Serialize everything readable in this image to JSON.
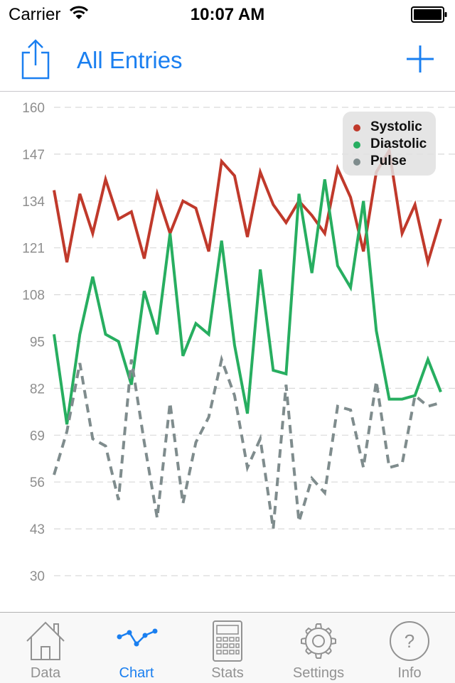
{
  "status_bar": {
    "carrier": "Carrier",
    "time": "10:07 AM"
  },
  "nav": {
    "title": "All Entries"
  },
  "colors": {
    "accent": "#1a7ff0",
    "systolic": "#c0392b",
    "diastolic": "#27ae60",
    "pulse": "#7f8c8d",
    "tab_inactive": "#929292"
  },
  "chart_data": {
    "type": "line",
    "ylim": [
      30,
      160
    ],
    "yticks": [
      "160",
      "147",
      "134",
      "121",
      "108",
      "95",
      "82",
      "69",
      "56",
      "43",
      "30"
    ],
    "grid": true,
    "legend_position": "top-right",
    "series": [
      {
        "name": "Systolic",
        "color": "#c0392b",
        "style": "solid",
        "values": [
          137,
          117,
          136,
          125,
          140,
          129,
          131,
          118,
          136,
          125,
          134,
          132,
          120,
          145,
          141,
          124,
          142,
          133,
          128,
          134,
          130,
          125,
          143,
          135,
          120,
          142,
          148,
          125,
          133,
          117,
          129
        ]
      },
      {
        "name": "Diastolic",
        "color": "#27ae60",
        "style": "solid",
        "values": [
          97,
          72,
          97,
          113,
          97,
          95,
          83,
          109,
          97,
          125,
          91,
          100,
          97,
          123,
          94,
          75,
          115,
          87,
          86,
          136,
          114,
          140,
          116,
          110,
          134,
          98,
          79,
          79,
          80,
          90,
          81
        ]
      },
      {
        "name": "Pulse",
        "color": "#7f8c8d",
        "style": "dashed",
        "values": [
          58,
          70,
          89,
          68,
          66,
          51,
          90,
          67,
          46,
          78,
          50,
          67,
          74,
          90,
          80,
          60,
          68,
          43,
          83,
          45,
          57,
          53,
          77,
          76,
          60,
          84,
          60,
          61,
          80,
          77,
          78
        ]
      }
    ]
  },
  "tabs": [
    {
      "label": "Data",
      "icon": "house-icon",
      "active": false
    },
    {
      "label": "Chart",
      "icon": "chart-icon",
      "active": true
    },
    {
      "label": "Stats",
      "icon": "calculator-icon",
      "active": false
    },
    {
      "label": "Settings",
      "icon": "gear-icon",
      "active": false
    },
    {
      "label": "Info",
      "icon": "question-circle-icon",
      "active": false
    }
  ]
}
